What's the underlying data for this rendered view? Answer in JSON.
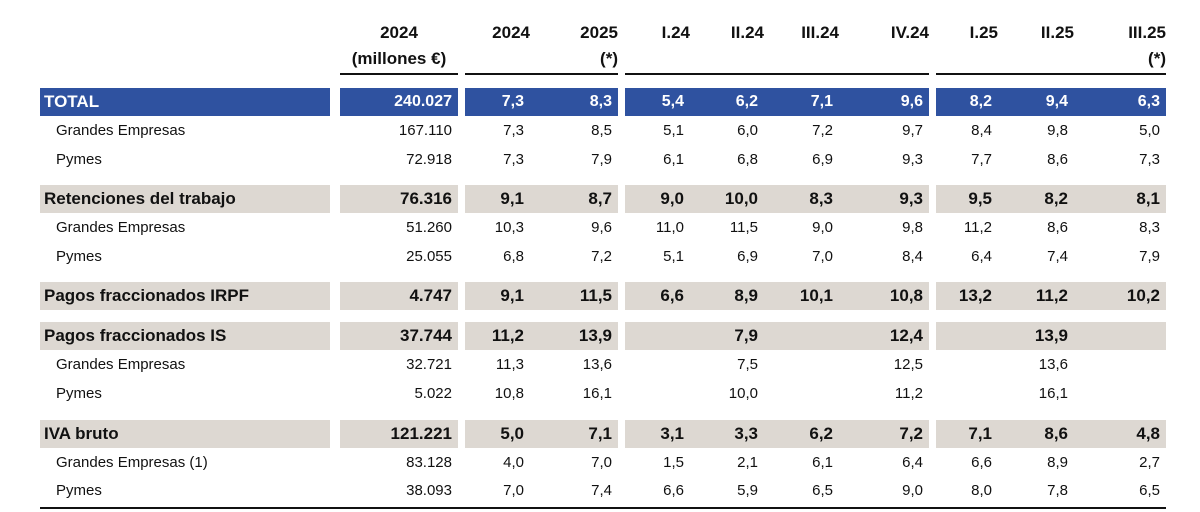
{
  "headers": [
    {
      "line1": "2024",
      "line2": "(millones €)"
    },
    {
      "line1": "2024",
      "line2": ""
    },
    {
      "line1": "2025",
      "line2": "(*)"
    },
    {
      "line1": "I.24",
      "line2": ""
    },
    {
      "line1": "II.24",
      "line2": ""
    },
    {
      "line1": "III.24",
      "line2": ""
    },
    {
      "line1": "IV.24",
      "line2": ""
    },
    {
      "line1": "I.25",
      "line2": ""
    },
    {
      "line1": "II.25",
      "line2": ""
    },
    {
      "line1": "III.25",
      "line2": "(*)"
    }
  ],
  "rows": [
    {
      "label": "TOTAL",
      "style": "total",
      "values": [
        "240.027",
        "7,3",
        "8,3",
        "5,4",
        "6,2",
        "7,1",
        "9,6",
        "8,2",
        "9,4",
        "6,3"
      ]
    },
    {
      "label": "Grandes Empresas",
      "style": "sub",
      "values": [
        "167.110",
        "7,3",
        "8,5",
        "5,1",
        "6,0",
        "7,2",
        "9,7",
        "8,4",
        "9,8",
        "5,0"
      ]
    },
    {
      "label": "Pymes",
      "style": "sub",
      "values": [
        "72.918",
        "7,3",
        "7,9",
        "6,1",
        "6,8",
        "6,9",
        "9,3",
        "7,7",
        "8,6",
        "7,3"
      ]
    },
    {
      "label": "Retenciones del trabajo",
      "style": "bold",
      "values": [
        "76.316",
        "9,1",
        "8,7",
        "9,0",
        "10,0",
        "8,3",
        "9,3",
        "9,5",
        "8,2",
        "8,1"
      ]
    },
    {
      "label": "Grandes Empresas",
      "style": "sub",
      "values": [
        "51.260",
        "10,3",
        "9,6",
        "11,0",
        "11,5",
        "9,0",
        "9,8",
        "11,2",
        "8,6",
        "8,3"
      ]
    },
    {
      "label": "Pymes",
      "style": "sub",
      "values": [
        "25.055",
        "6,8",
        "7,2",
        "5,1",
        "6,9",
        "7,0",
        "8,4",
        "6,4",
        "7,4",
        "7,9"
      ]
    },
    {
      "label": "Pagos fraccionados IRPF",
      "style": "bold",
      "values": [
        "4.747",
        "9,1",
        "11,5",
        "6,6",
        "8,9",
        "10,1",
        "10,8",
        "13,2",
        "11,2",
        "10,2"
      ]
    },
    {
      "label": "Pagos fraccionados IS",
      "style": "bold",
      "values": [
        "37.744",
        "11,2",
        "13,9",
        "",
        "7,9",
        "",
        "12,4",
        "",
        "13,9",
        ""
      ]
    },
    {
      "label": "Grandes Empresas",
      "style": "sub",
      "values": [
        "32.721",
        "11,3",
        "13,6",
        "",
        "7,5",
        "",
        "12,5",
        "",
        "13,6",
        ""
      ]
    },
    {
      "label": "Pymes",
      "style": "sub",
      "values": [
        "5.022",
        "10,8",
        "16,1",
        "",
        "10,0",
        "",
        "11,2",
        "",
        "16,1",
        ""
      ]
    },
    {
      "label": "IVA bruto",
      "style": "bold",
      "values": [
        "121.221",
        "5,0",
        "7,1",
        "3,1",
        "3,3",
        "6,2",
        "7,2",
        "7,1",
        "8,6",
        "4,8"
      ]
    },
    {
      "label": "Grandes Empresas (1)",
      "style": "sub",
      "values": [
        "83.128",
        "4,0",
        "7,0",
        "1,5",
        "2,1",
        "6,1",
        "6,4",
        "6,6",
        "8,9",
        "2,7"
      ]
    },
    {
      "label": "Pymes",
      "style": "sub",
      "values": [
        "38.093",
        "7,0",
        "7,4",
        "6,6",
        "5,9",
        "6,5",
        "9,0",
        "8,0",
        "7,8",
        "6,5"
      ]
    }
  ]
}
